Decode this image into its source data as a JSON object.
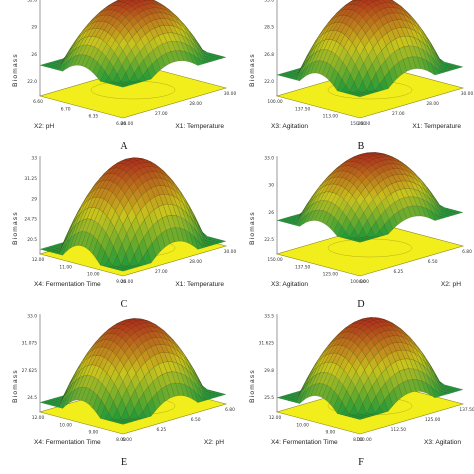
{
  "chart_data": [
    {
      "type": "surface",
      "panel_label": "A",
      "zlabel": "Biomass",
      "z_ticks": [
        "22.0",
        "26",
        "29",
        "32.8"
      ],
      "x_axis": {
        "label": "X2: pH",
        "ticks": [
          "6.60",
          "6.70",
          "6.35",
          "6.80"
        ]
      },
      "y_axis": {
        "label": "X1: Temperature",
        "ticks": [
          "26.00",
          "27.00",
          "28.00",
          "30.00"
        ]
      },
      "base_color": "#f2ee1c",
      "surface_colors": {
        "low": "#1f9a3a",
        "mid": "#c9c31d",
        "high": "#b0301c"
      },
      "z_range": [
        0.32,
        0.98
      ]
    },
    {
      "type": "surface",
      "panel_label": "B",
      "zlabel": "Biomass",
      "z_ticks": [
        "22.0",
        "26.8",
        "28.5",
        "33.0"
      ],
      "x_axis": {
        "label": "X3: Agitation",
        "ticks": [
          "100.00",
          "137.50",
          "113.00",
          "150.00"
        ]
      },
      "y_axis": {
        "label": "X1: Temperature",
        "ticks": [
          "26.00",
          "27.00",
          "28.00",
          "30.00"
        ]
      },
      "base_color": "#f2ee1c",
      "surface_colors": {
        "low": "#1f9a3a",
        "mid": "#c9c31d",
        "high": "#b0301c"
      },
      "z_range": [
        0.22,
        1.0
      ]
    },
    {
      "type": "surface",
      "panel_label": "C",
      "zlabel": "Biomass",
      "z_ticks": [
        "20.5",
        "24.75",
        "29",
        "31.25",
        "33"
      ],
      "x_axis": {
        "label": "X4: Fermentation Time",
        "ticks": [
          "12.00",
          "11.00",
          "10.00",
          "9.00"
        ]
      },
      "y_axis": {
        "label": "X1: Temperature",
        "ticks": [
          "26.00",
          "27.00",
          "28.00",
          "30.00"
        ]
      },
      "base_color": "#f2ee1c",
      "surface_colors": {
        "low": "#1f9a3a",
        "mid": "#c9c31d",
        "high": "#b0301c"
      },
      "z_range": [
        0.05,
        0.95
      ]
    },
    {
      "type": "surface",
      "panel_label": "D",
      "zlabel": "Biomass",
      "z_ticks": [
        "22.5",
        "26",
        "30",
        "33.0"
      ],
      "x_axis": {
        "label": "X3: Agitation",
        "ticks": [
          "150.00",
          "137.50",
          "125.00",
          "100.00"
        ]
      },
      "y_axis": {
        "label": "X2: pH",
        "ticks": [
          "6.00",
          "6.25",
          "6.50",
          "6.80"
        ]
      },
      "base_color": "#f2ee1c",
      "surface_colors": {
        "low": "#1f9a3a",
        "mid": "#c9c31d",
        "high": "#b0301c"
      },
      "z_range": [
        0.35,
        1.0
      ]
    },
    {
      "type": "surface",
      "panel_label": "E",
      "zlabel": "Biomass",
      "z_ticks": [
        "24.5",
        "27.625",
        "31.075",
        "33.0"
      ],
      "x_axis": {
        "label": "X4: Fermentation Time",
        "ticks": [
          "12.00",
          "10.00",
          "9.00",
          "8.00"
        ]
      },
      "y_axis": {
        "label": "X2: pH",
        "ticks": [
          "6.00",
          "6.25",
          "6.50",
          "6.80"
        ]
      },
      "base_color": "#f2ee1c",
      "surface_colors": {
        "low": "#1f9a3a",
        "mid": "#c9c31d",
        "high": "#b0301c"
      },
      "z_range": [
        0.1,
        0.92
      ]
    },
    {
      "type": "surface",
      "panel_label": "F",
      "zlabel": "Biomass",
      "z_ticks": [
        "25.5",
        "29.8",
        "31.625",
        "33.5"
      ],
      "x_axis": {
        "label": "X4: Fermentation Time",
        "ticks": [
          "12.00",
          "10.00",
          "9.00",
          "8.00"
        ]
      },
      "y_axis": {
        "label": "X3: Agitation",
        "ticks": [
          "100.00",
          "112.50",
          "125.00",
          "137.50"
        ]
      },
      "base_color": "#f2ee1c",
      "surface_colors": {
        "low": "#1f9a3a",
        "mid": "#c9c31d",
        "high": "#b0301c"
      },
      "z_range": [
        0.15,
        0.93
      ]
    }
  ]
}
